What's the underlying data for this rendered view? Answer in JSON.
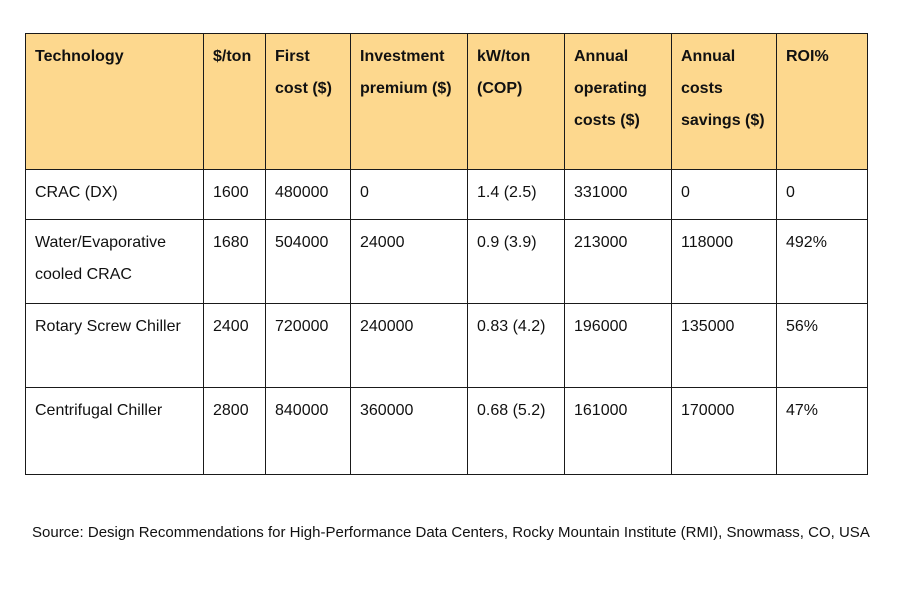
{
  "table": {
    "headers": [
      "Technology",
      "$/ton",
      "First cost ($)",
      "Investment premium ($)",
      "kW/ton (COP)",
      "Annual operating costs ($)",
      "Annual costs savings ($)",
      "ROI%"
    ],
    "header_fill_color": "#fdd88e",
    "rows": [
      [
        "CRAC (DX)",
        "1600",
        "480000",
        "0",
        "1.4 (2.5)",
        "331000",
        "0",
        "0"
      ],
      [
        "Water/Evaporative cooled CRAC",
        "1680",
        "504000",
        "24000",
        "0.9 (3.9)",
        "213000",
        "118000",
        "492%"
      ],
      [
        "Rotary Screw Chiller",
        "2400",
        "720000",
        "240000",
        "0.83 (4.2)",
        "196000",
        "135000",
        "56%"
      ],
      [
        "Centrifugal Chiller",
        "2800",
        "840000",
        "360000",
        "0.68 (5.2)",
        "161000",
        "170000",
        "47%"
      ]
    ]
  },
  "source_note": "Source: Design Recommendations for High-Performance Data Centers, Rocky Mountain Institute (RMI), Snowmass, CO, USA"
}
